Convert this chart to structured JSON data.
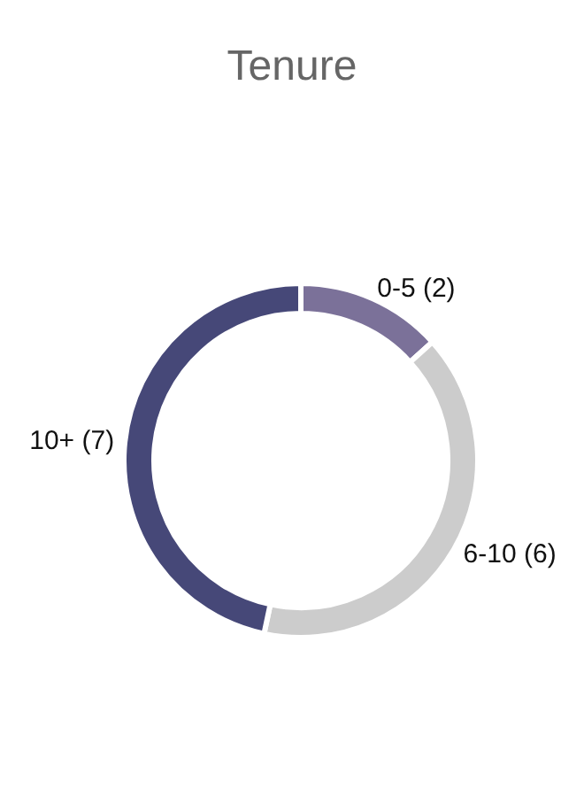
{
  "chart_data": {
    "type": "donut",
    "title": "Tenure",
    "categories": [
      "0-5",
      "6-10",
      "10+"
    ],
    "values": [
      2,
      6,
      7
    ],
    "colors": [
      "#7b7199",
      "#cccccc",
      "#464878"
    ],
    "value_labels": [
      "(2)",
      "(6)",
      "(7)"
    ]
  }
}
